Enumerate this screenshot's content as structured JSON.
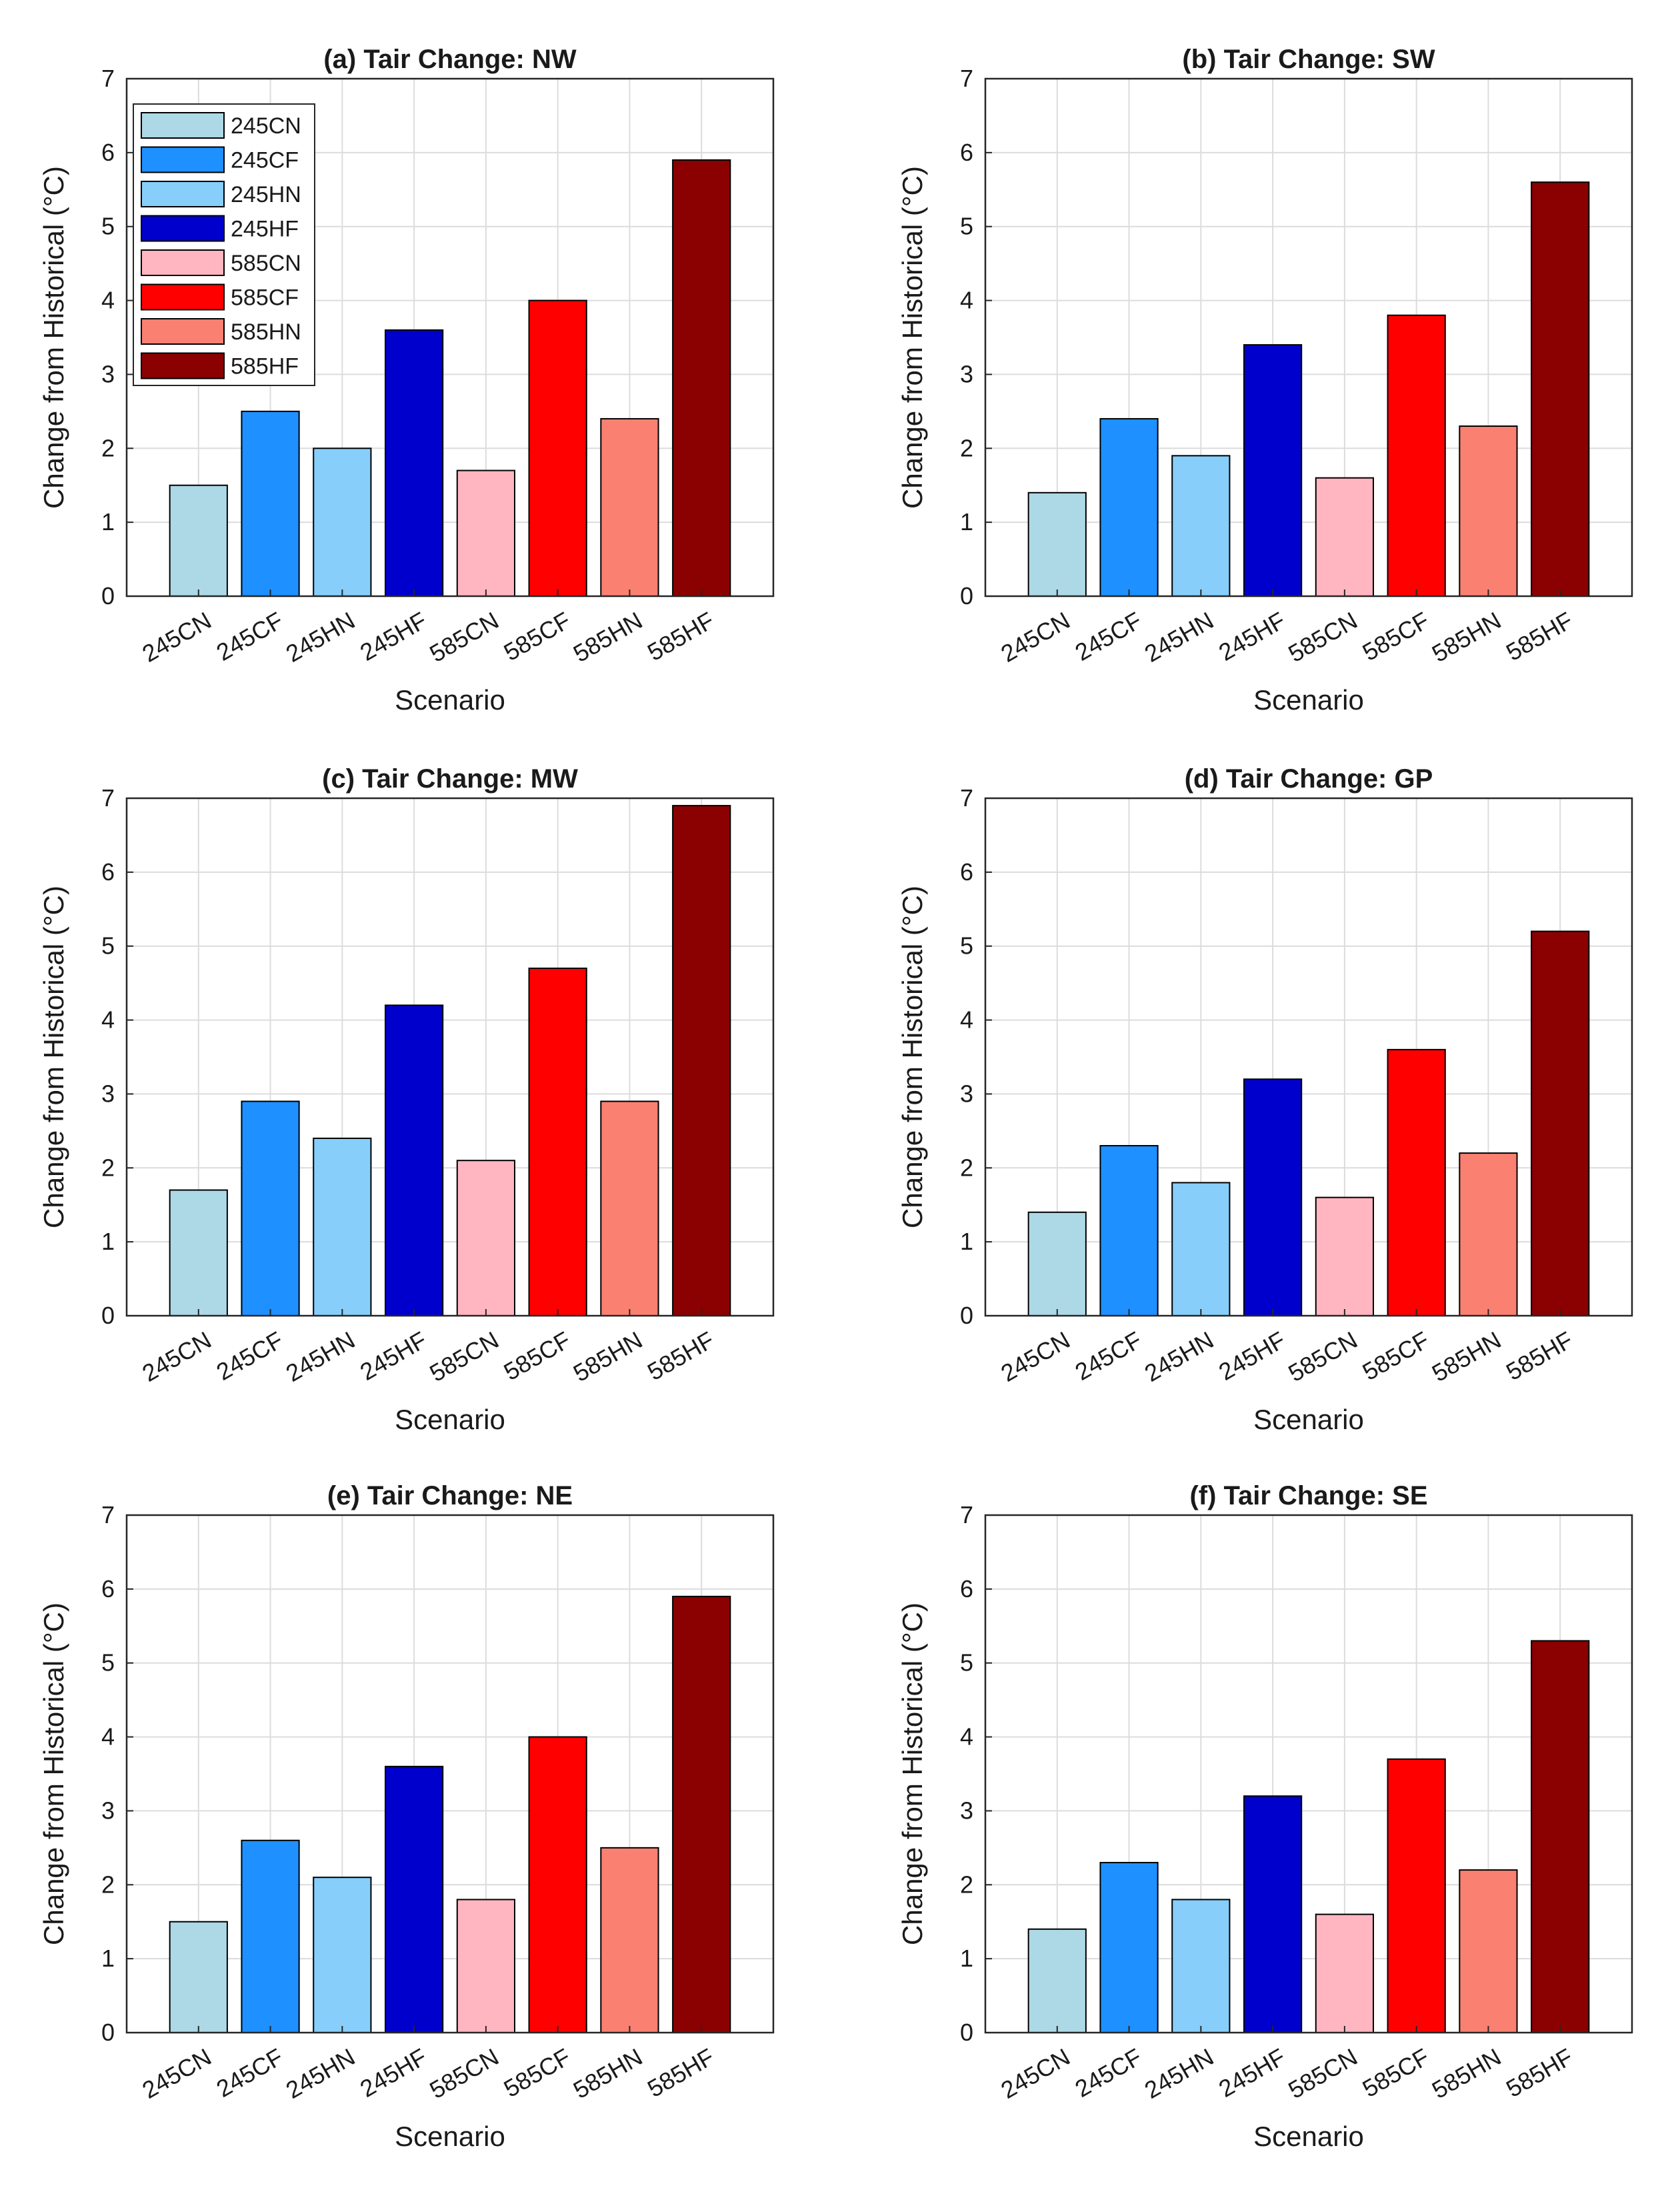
{
  "figure": {
    "background": "#ffffff"
  },
  "colors": {
    "245CN": "#add8e6",
    "245CF": "#1e90ff",
    "245HN": "#87cefa",
    "245HF": "#0000cd",
    "585CN": "#ffb6c1",
    "585CF": "#ff0000",
    "585HN": "#fa8072",
    "585HF": "#8b0000"
  },
  "chart_data": [
    {
      "type": "bar",
      "title": "(a) Tair Change: NW",
      "xlabel": "Scenario",
      "ylabel": "Change from Historical (°C)",
      "ylim": [
        0,
        7
      ],
      "yticks": [
        0,
        1,
        2,
        3,
        4,
        5,
        6,
        7
      ],
      "grid": true,
      "legend": {
        "placement": "top-left",
        "entries": [
          "245CN",
          "245CF",
          "245HN",
          "245HF",
          "585CN",
          "585CF",
          "585HN",
          "585HF"
        ]
      },
      "categories": [
        "245CN",
        "245CF",
        "245HN",
        "245HF",
        "585CN",
        "585CF",
        "585HN",
        "585HF"
      ],
      "values": [
        1.5,
        2.5,
        2.0,
        3.6,
        1.7,
        4.0,
        2.4,
        5.9
      ]
    },
    {
      "type": "bar",
      "title": "(b) Tair Change: SW",
      "xlabel": "Scenario",
      "ylabel": "Change from Historical (°C)",
      "ylim": [
        0,
        7
      ],
      "yticks": [
        0,
        1,
        2,
        3,
        4,
        5,
        6,
        7
      ],
      "grid": true,
      "categories": [
        "245CN",
        "245CF",
        "245HN",
        "245HF",
        "585CN",
        "585CF",
        "585HN",
        "585HF"
      ],
      "values": [
        1.4,
        2.4,
        1.9,
        3.4,
        1.6,
        3.8,
        2.3,
        5.6
      ]
    },
    {
      "type": "bar",
      "title": "(c) Tair Change: MW",
      "xlabel": "Scenario",
      "ylabel": "Change from Historical (°C)",
      "ylim": [
        0,
        7
      ],
      "yticks": [
        0,
        1,
        2,
        3,
        4,
        5,
        6,
        7
      ],
      "grid": true,
      "categories": [
        "245CN",
        "245CF",
        "245HN",
        "245HF",
        "585CN",
        "585CF",
        "585HN",
        "585HF"
      ],
      "values": [
        1.7,
        2.9,
        2.4,
        4.2,
        2.1,
        4.7,
        2.9,
        6.9
      ]
    },
    {
      "type": "bar",
      "title": "(d) Tair Change: GP",
      "xlabel": "Scenario",
      "ylabel": "Change from Historical (°C)",
      "ylim": [
        0,
        7
      ],
      "yticks": [
        0,
        1,
        2,
        3,
        4,
        5,
        6,
        7
      ],
      "grid": true,
      "categories": [
        "245CN",
        "245CF",
        "245HN",
        "245HF",
        "585CN",
        "585CF",
        "585HN",
        "585HF"
      ],
      "values": [
        1.4,
        2.3,
        1.8,
        3.2,
        1.6,
        3.6,
        2.2,
        5.2
      ]
    },
    {
      "type": "bar",
      "title": "(e) Tair Change: NE",
      "xlabel": "Scenario",
      "ylabel": "Change from Historical (°C)",
      "ylim": [
        0,
        7
      ],
      "yticks": [
        0,
        1,
        2,
        3,
        4,
        5,
        6,
        7
      ],
      "grid": true,
      "categories": [
        "245CN",
        "245CF",
        "245HN",
        "245HF",
        "585CN",
        "585CF",
        "585HN",
        "585HF"
      ],
      "values": [
        1.5,
        2.6,
        2.1,
        3.6,
        1.8,
        4.0,
        2.5,
        5.9
      ]
    },
    {
      "type": "bar",
      "title": "(f) Tair Change: SE",
      "xlabel": "Scenario",
      "ylabel": "Change from Historical (°C)",
      "ylim": [
        0,
        7
      ],
      "yticks": [
        0,
        1,
        2,
        3,
        4,
        5,
        6,
        7
      ],
      "grid": true,
      "categories": [
        "245CN",
        "245CF",
        "245HN",
        "245HF",
        "585CN",
        "585CF",
        "585HN",
        "585HF"
      ],
      "values": [
        1.4,
        2.3,
        1.8,
        3.2,
        1.6,
        3.7,
        2.2,
        5.3
      ]
    }
  ]
}
